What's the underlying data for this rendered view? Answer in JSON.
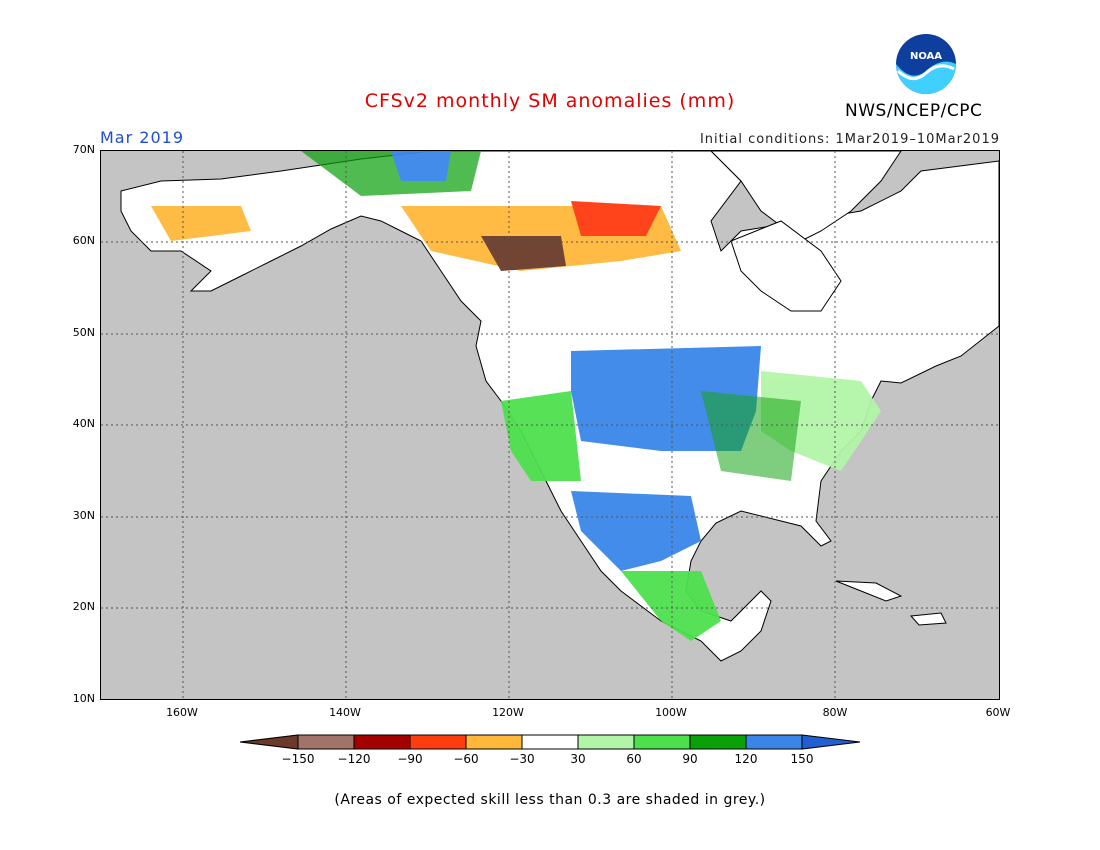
{
  "title": "CFSv2 monthly SM anomalies (mm)",
  "month": "Mar 2019",
  "initial_conditions": "Initial conditions: 1Mar2019–10Mar2019",
  "agency": "NWS/NCEP/CPC",
  "logo_text": "NOAA",
  "footnote": "(Areas of expected skill less than 0.3 are shaded in grey.)",
  "map": {
    "lon_range": [
      -170,
      -60
    ],
    "lat_range": [
      10,
      70
    ],
    "lat_labels": [
      "70N",
      "60N",
      "50N",
      "40N",
      "30N",
      "20N",
      "10N"
    ],
    "lon_labels": [
      "160W",
      "140W",
      "120W",
      "100W",
      "80W",
      "60W"
    ],
    "ocean_color": "#c4c4c4",
    "land_color": "#ffffff"
  },
  "colorbar": {
    "labels": [
      "−150",
      "−120",
      "−90",
      "−60",
      "−30",
      "30",
      "60",
      "90",
      "120",
      "150"
    ],
    "colors": [
      "#6b3a2a",
      "#a07468",
      "#a30000",
      "#ff3b10",
      "#ffb83a",
      "#ffffff",
      "#b3f5a8",
      "#4de04d",
      "#0aa00a",
      "#3a86e8",
      "#2060d0"
    ]
  },
  "anomaly_regions": [
    {
      "name": "great-plains-wet",
      "color": "#3a86e8"
    },
    {
      "name": "texas-mexico-wet",
      "color": "#3a86e8"
    },
    {
      "name": "canada-dry",
      "color": "#ff3b10"
    },
    {
      "name": "prairies-very-dry",
      "color": "#6b3a2a"
    },
    {
      "name": "east-moist",
      "color": "#4de04d"
    },
    {
      "name": "southeast-light",
      "color": "#b3f5a8"
    }
  ]
}
